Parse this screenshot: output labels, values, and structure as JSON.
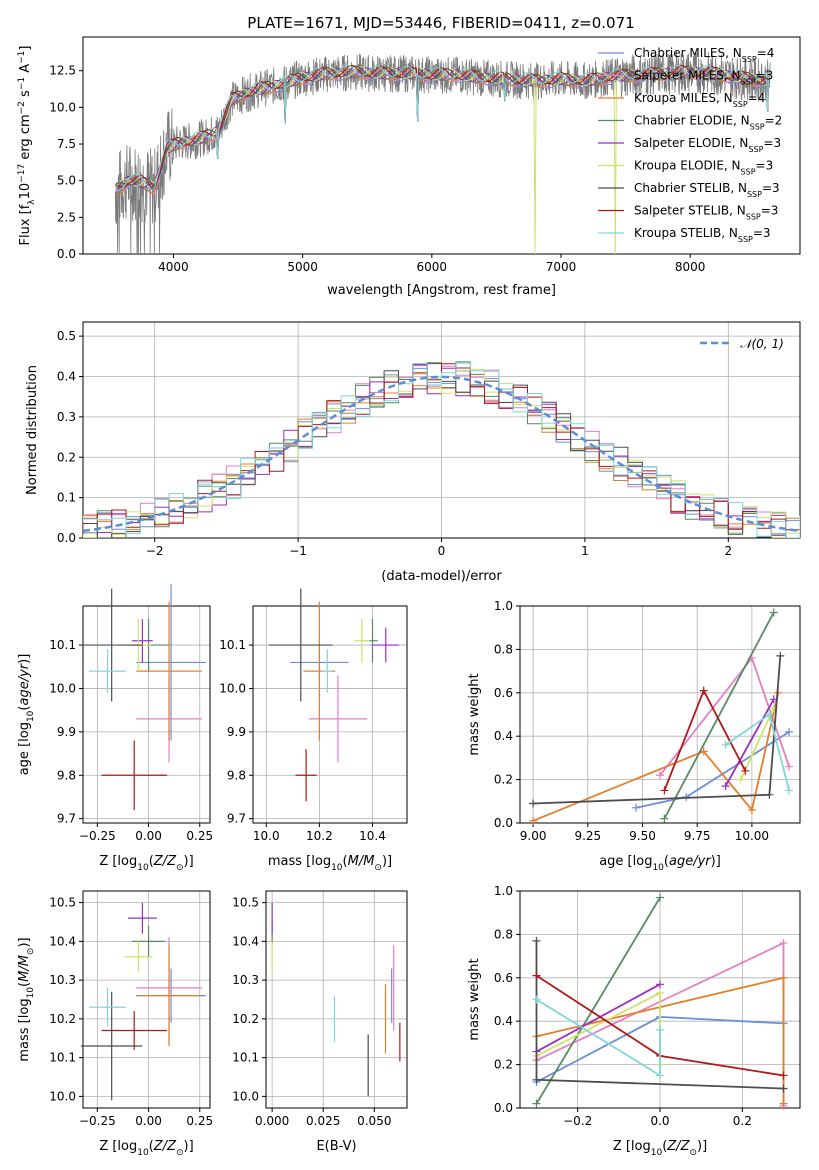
{
  "figure_title": "PLATE=1671, MJD=53446, FIBERID=0411, z=0.071",
  "models": [
    {
      "name": "Chabrier MILES, N",
      "sub": "SSP",
      "suffix": "=4",
      "color": "#6a8fd8"
    },
    {
      "name": "Salpeter MILES, N",
      "sub": "SSP",
      "suffix": "=3",
      "color": "#e57fc2"
    },
    {
      "name": "Kroupa MILES, N",
      "sub": "SSP",
      "suffix": "=4",
      "color": "#e37f2a"
    },
    {
      "name": "Chabrier ELODIE, N",
      "sub": "SSP",
      "suffix": "=2",
      "color": "#5a8a62"
    },
    {
      "name": "Salpeter ELODIE, N",
      "sub": "SSP",
      "suffix": "=3",
      "color": "#9a2fc0"
    },
    {
      "name": "Kroupa ELODIE, N",
      "sub": "SSP",
      "suffix": "=3",
      "color": "#cfe36a"
    },
    {
      "name": "Chabrier STELIB, N",
      "sub": "SSP",
      "suffix": "=3",
      "color": "#4d4d4d"
    },
    {
      "name": "Salpeter STELIB, N",
      "sub": "SSP",
      "suffix": "=3",
      "color": "#b01818"
    },
    {
      "name": "Kroupa STELIB, N",
      "sub": "SSP",
      "suffix": "=3",
      "color": "#7fd6dc"
    }
  ],
  "chart_data": [
    {
      "id": "spectrum",
      "type": "line",
      "xlabel": "wavelength [Angstrom, rest frame]",
      "ylabel": "Flux [f",
      "ylabel_parts": {
        "a": "Flux [f",
        "sub": "λ",
        "b": "10",
        "sup1": "−17",
        "c": " erg cm",
        "sup2": "−2",
        "d": " s",
        "sup3": "−1",
        "e": " A",
        "sup4": "−1",
        "f": "]"
      },
      "xlim": [
        3300,
        8850
      ],
      "ylim": [
        0,
        14.8
      ],
      "xticks": [
        "4000",
        "5000",
        "6000",
        "7000",
        "8000"
      ],
      "xtick_values": [
        4000,
        5000,
        6000,
        7000,
        8000
      ],
      "yticks": [
        "0.0",
        "2.5",
        "5.0",
        "7.5",
        "10.0",
        "12.5"
      ],
      "ytick_values": [
        0,
        2.5,
        5,
        7.5,
        10,
        12.5
      ],
      "envelope_x": [
        3550,
        3650,
        3750,
        3850,
        3950,
        4050,
        4150,
        4250,
        4350,
        4450,
        4550,
        4650,
        4800,
        5000,
        5200,
        5400,
        5600,
        5800,
        6000,
        6200,
        6400,
        6600,
        6800,
        7000,
        7200,
        7400,
        7600,
        7800,
        8000,
        8200,
        8400,
        8600
      ],
      "envelope_y": [
        4.3,
        5.0,
        4.9,
        4.5,
        7.2,
        7.6,
        7.7,
        8.0,
        8.4,
        10.5,
        10.9,
        11.2,
        11.5,
        12.0,
        12.3,
        12.4,
        12.3,
        12.3,
        12.2,
        12.2,
        12.0,
        11.9,
        11.8,
        11.9,
        11.8,
        12.1,
        12.2,
        12.3,
        12.4,
        12.3,
        12.0,
        11.8
      ],
      "drops": [
        {
          "x": 4340,
          "y": 6.5
        },
        {
          "x": 4861,
          "y": 8.9
        },
        {
          "x": 5890,
          "y": 9.0
        },
        {
          "x": 6563,
          "y": 10.4
        },
        {
          "x": 6800,
          "y": 0.0
        },
        {
          "x": 7420,
          "y": 0.0
        },
        {
          "x": 8600,
          "y": 9.7
        }
      ]
    },
    {
      "id": "residuals",
      "type": "histogram",
      "xlabel": "(data-model)/error",
      "ylabel": "Normed distribution",
      "legend": "𝒩(0, 1)",
      "xlim": [
        -2.5,
        2.5
      ],
      "ylim": [
        0,
        0.535
      ],
      "xticks": [
        "−2",
        "−1",
        "0",
        "1",
        "2"
      ],
      "xtick_values": [
        -2,
        -1,
        0,
        1,
        2
      ],
      "yticks": [
        "0.0",
        "0.1",
        "0.2",
        "0.3",
        "0.4",
        "0.5"
      ],
      "ytick_values": [
        0,
        0.1,
        0.2,
        0.3,
        0.4,
        0.5
      ],
      "bin_width": 0.1
    },
    {
      "id": "age_vs_Z",
      "type": "scatter",
      "xlabel": "Z [log",
      "ylabel": "age  [log",
      "xlim": [
        -0.32,
        0.3
      ],
      "ylim": [
        9.69,
        10.19
      ],
      "xticks": [
        "−0.25",
        "0.00",
        "0.25"
      ],
      "xtick_values": [
        -0.25,
        0,
        0.25
      ],
      "yticks": [
        "9.7",
        "9.8",
        "9.9",
        "10.0",
        "10.1"
      ],
      "ytick_values": [
        9.7,
        9.8,
        9.9,
        10.0,
        10.1
      ],
      "points": [
        {
          "m": 0,
          "x": 0.11,
          "y": 10.06,
          "xerr": 0.17,
          "yerr": 0.18
        },
        {
          "m": 1,
          "x": 0.1,
          "y": 9.93,
          "xerr": 0.16,
          "yerr": 0.1
        },
        {
          "m": 2,
          "x": 0.1,
          "y": 10.04,
          "xerr": 0.16,
          "yerr": 0.16
        },
        {
          "m": 3,
          "x": 0.0,
          "y": 10.1,
          "xerr": 0.1,
          "yerr": 0.06
        },
        {
          "m": 4,
          "x": -0.03,
          "y": 10.11,
          "xerr": 0.05,
          "yerr": 0.05
        },
        {
          "m": 5,
          "x": -0.05,
          "y": 10.1,
          "xerr": 0.06,
          "yerr": 0.06
        },
        {
          "m": 6,
          "x": -0.18,
          "y": 10.1,
          "xerr": 0.15,
          "yerr": 0.13
        },
        {
          "m": 7,
          "x": -0.07,
          "y": 9.8,
          "xerr": 0.16,
          "yerr": 0.08
        },
        {
          "m": 8,
          "x": -0.2,
          "y": 10.04,
          "xerr": 0.09,
          "yerr": 0.05
        }
      ]
    },
    {
      "id": "age_vs_mass",
      "type": "scatter",
      "xlabel": "mass [log",
      "ylabel": "",
      "xlim": [
        9.95,
        10.53
      ],
      "ylim": [
        9.69,
        10.19
      ],
      "xticks": [
        "10.0",
        "10.2",
        "10.4"
      ],
      "xtick_values": [
        10.0,
        10.2,
        10.4
      ],
      "yticks": [
        "9.7",
        "9.8",
        "9.9",
        "10.0",
        "10.1"
      ],
      "ytick_values": [
        9.7,
        9.8,
        9.9,
        10.0,
        10.1
      ],
      "points": [
        {
          "m": 0,
          "x": 10.2,
          "y": 10.06,
          "xerr": 0.11,
          "yerr": 0.04
        },
        {
          "m": 1,
          "x": 10.27,
          "y": 9.93,
          "xerr": 0.11,
          "yerr": 0.1
        },
        {
          "m": 2,
          "x": 10.2,
          "y": 10.04,
          "xerr": 0.06,
          "yerr": 0.16
        },
        {
          "m": 3,
          "x": 10.4,
          "y": 10.11,
          "xerr": 0.02,
          "yerr": 0.05
        },
        {
          "m": 4,
          "x": 10.45,
          "y": 10.1,
          "xerr": 0.05,
          "yerr": 0.04
        },
        {
          "m": 5,
          "x": 10.36,
          "y": 10.11,
          "xerr": 0.03,
          "yerr": 0.05
        },
        {
          "m": 6,
          "x": 10.13,
          "y": 10.1,
          "xerr": 0.12,
          "yerr": 0.13
        },
        {
          "m": 7,
          "x": 10.15,
          "y": 9.8,
          "xerr": 0.04,
          "yerr": 0.06
        },
        {
          "m": 8,
          "x": 10.23,
          "y": 10.04,
          "xerr": 0.02,
          "yerr": 0.05
        }
      ]
    },
    {
      "id": "weight_vs_age",
      "type": "line",
      "xlabel": "age  [log",
      "ylabel": "mass weight",
      "xlim": [
        8.94,
        10.22
      ],
      "ylim": [
        0,
        1
      ],
      "xticks": [
        "9.00",
        "9.25",
        "9.50",
        "9.75",
        "10.00"
      ],
      "xtick_values": [
        9.0,
        9.25,
        9.5,
        9.75,
        10.0
      ],
      "yticks": [
        "0.0",
        "0.2",
        "0.4",
        "0.6",
        "0.8",
        "1.0"
      ],
      "ytick_values": [
        0,
        0.2,
        0.4,
        0.6,
        0.8,
        1.0
      ],
      "series": [
        {
          "m": 0,
          "x": [
            9.47,
            9.7,
            10.17
          ],
          "y": [
            0.07,
            0.12,
            0.42
          ]
        },
        {
          "m": 1,
          "x": [
            9.58,
            10.0,
            10.17
          ],
          "y": [
            0.22,
            0.76,
            0.26
          ]
        },
        {
          "m": 2,
          "x": [
            9.0,
            9.78,
            10.0,
            10.12
          ],
          "y": [
            0.01,
            0.33,
            0.06,
            0.6
          ]
        },
        {
          "m": 3,
          "x": [
            9.6,
            10.1
          ],
          "y": [
            0.02,
            0.97
          ]
        },
        {
          "m": 4,
          "x": [
            9.88,
            10.1
          ],
          "y": [
            0.17,
            0.57
          ]
        },
        {
          "m": 5,
          "x": [
            9.95,
            10.1
          ],
          "y": [
            0.2,
            0.53
          ]
        },
        {
          "m": 6,
          "x": [
            9.0,
            10.08,
            10.13
          ],
          "y": [
            0.09,
            0.13,
            0.77
          ]
        },
        {
          "m": 7,
          "x": [
            9.6,
            9.78,
            9.97
          ],
          "y": [
            0.15,
            0.61,
            0.24
          ]
        },
        {
          "m": 8,
          "x": [
            9.88,
            10.08,
            10.17
          ],
          "y": [
            0.36,
            0.5,
            0.15
          ]
        }
      ]
    },
    {
      "id": "mass_vs_Z",
      "type": "scatter",
      "xlabel": "Z [log",
      "ylabel": "mass [log",
      "xlim": [
        -0.32,
        0.3
      ],
      "ylim": [
        9.97,
        10.53
      ],
      "xticks": [
        "−0.25",
        "0.00",
        "0.25"
      ],
      "xtick_values": [
        -0.25,
        0,
        0.25
      ],
      "yticks": [
        "10.0",
        "10.1",
        "10.2",
        "10.3",
        "10.4",
        "10.5"
      ],
      "ytick_values": [
        10.0,
        10.1,
        10.2,
        10.3,
        10.4,
        10.5
      ],
      "points": [
        {
          "m": 0,
          "x": 0.11,
          "y": 10.26,
          "xerr": 0.17,
          "yerr": 0.07
        },
        {
          "m": 1,
          "x": 0.1,
          "y": 10.28,
          "xerr": 0.16,
          "yerr": 0.13
        },
        {
          "m": 2,
          "x": 0.1,
          "y": 10.26,
          "xerr": 0.16,
          "yerr": 0.13
        },
        {
          "m": 3,
          "x": 0.0,
          "y": 10.4,
          "xerr": 0.08,
          "yerr": 0.04
        },
        {
          "m": 4,
          "x": -0.03,
          "y": 10.46,
          "xerr": 0.07,
          "yerr": 0.04
        },
        {
          "m": 5,
          "x": -0.05,
          "y": 10.36,
          "xerr": 0.07,
          "yerr": 0.04
        },
        {
          "m": 6,
          "x": -0.18,
          "y": 10.13,
          "xerr": 0.15,
          "yerr": 0.14
        },
        {
          "m": 7,
          "x": -0.07,
          "y": 10.17,
          "xerr": 0.16,
          "yerr": 0.05
        },
        {
          "m": 8,
          "x": -0.2,
          "y": 10.23,
          "xerr": 0.09,
          "yerr": 0.05
        }
      ]
    },
    {
      "id": "mass_vs_ebv",
      "type": "scatter",
      "xlabel": "E(B-V)",
      "ylabel": "",
      "xlim": [
        -0.003,
        0.066
      ],
      "ylim": [
        9.97,
        10.53
      ],
      "xticks": [
        "0.000",
        "0.025",
        "0.050"
      ],
      "xtick_values": [
        0,
        0.025,
        0.05
      ],
      "yticks": [
        "10.0",
        "10.1",
        "10.2",
        "10.3",
        "10.4",
        "10.5"
      ],
      "ytick_values": [
        10.0,
        10.1,
        10.2,
        10.3,
        10.4,
        10.5
      ],
      "points": [
        {
          "m": 0,
          "x": 0.0585,
          "y": 10.26,
          "xerr": 0,
          "yerr": 0.07
        },
        {
          "m": 1,
          "x": 0.0595,
          "y": 10.28,
          "xerr": 0,
          "yerr": 0.11
        },
        {
          "m": 2,
          "x": 0.0555,
          "y": 10.2,
          "xerr": 0,
          "yerr": 0.09
        },
        {
          "m": 3,
          "x": 0.0,
          "y": 10.42,
          "xerr": 0,
          "yerr": 0.03
        },
        {
          "m": 4,
          "x": 0.0,
          "y": 10.46,
          "xerr": 0,
          "yerr": 0.04
        },
        {
          "m": 5,
          "x": 0.0,
          "y": 10.36,
          "xerr": 0,
          "yerr": 0.04
        },
        {
          "m": 6,
          "x": 0.047,
          "y": 10.08,
          "xerr": 0,
          "yerr": 0.08
        },
        {
          "m": 7,
          "x": 0.0625,
          "y": 10.14,
          "xerr": 0,
          "yerr": 0.05
        },
        {
          "m": 8,
          "x": 0.0305,
          "y": 10.2,
          "xerr": 0,
          "yerr": 0.06
        }
      ]
    },
    {
      "id": "weight_vs_Z",
      "type": "line",
      "xlabel": "Z [log",
      "ylabel": "mass weight",
      "xlim": [
        -0.34,
        0.34
      ],
      "ylim": [
        0,
        1
      ],
      "xticks": [
        "−0.2",
        "0.0",
        "0.2"
      ],
      "xtick_values": [
        -0.2,
        0,
        0.2
      ],
      "yticks": [
        "0.0",
        "0.2",
        "0.4",
        "0.6",
        "0.8",
        "1.0"
      ],
      "ytick_values": [
        0,
        0.2,
        0.4,
        0.6,
        0.8,
        1.0
      ],
      "series": [
        {
          "m": 0,
          "x": [
            -0.3,
            0.0,
            0.3
          ],
          "y": [
            0.12,
            0.42,
            0.39
          ]
        },
        {
          "m": 1,
          "x": [
            -0.3,
            0.3,
            0.3
          ],
          "y": [
            0.22,
            0.76,
            0.01
          ]
        },
        {
          "m": 2,
          "x": [
            -0.3,
            0.3,
            0.3
          ],
          "y": [
            0.33,
            0.6,
            0.02
          ]
        },
        {
          "m": 3,
          "x": [
            -0.3,
            0.0
          ],
          "y": [
            0.02,
            0.97
          ]
        },
        {
          "m": 4,
          "x": [
            -0.3,
            0.0
          ],
          "y": [
            0.26,
            0.57
          ]
        },
        {
          "m": 5,
          "x": [
            -0.3,
            0.0,
            0.0
          ],
          "y": [
            0.24,
            0.53,
            0.2
          ]
        },
        {
          "m": 6,
          "x": [
            -0.3,
            -0.3,
            0.3
          ],
          "y": [
            0.77,
            0.13,
            0.09
          ]
        },
        {
          "m": 7,
          "x": [
            -0.3,
            0.0,
            0.3
          ],
          "y": [
            0.61,
            0.24,
            0.15
          ]
        },
        {
          "m": 8,
          "x": [
            -0.3,
            0.0,
            0.0
          ],
          "y": [
            0.5,
            0.15,
            0.36
          ]
        }
      ]
    }
  ]
}
